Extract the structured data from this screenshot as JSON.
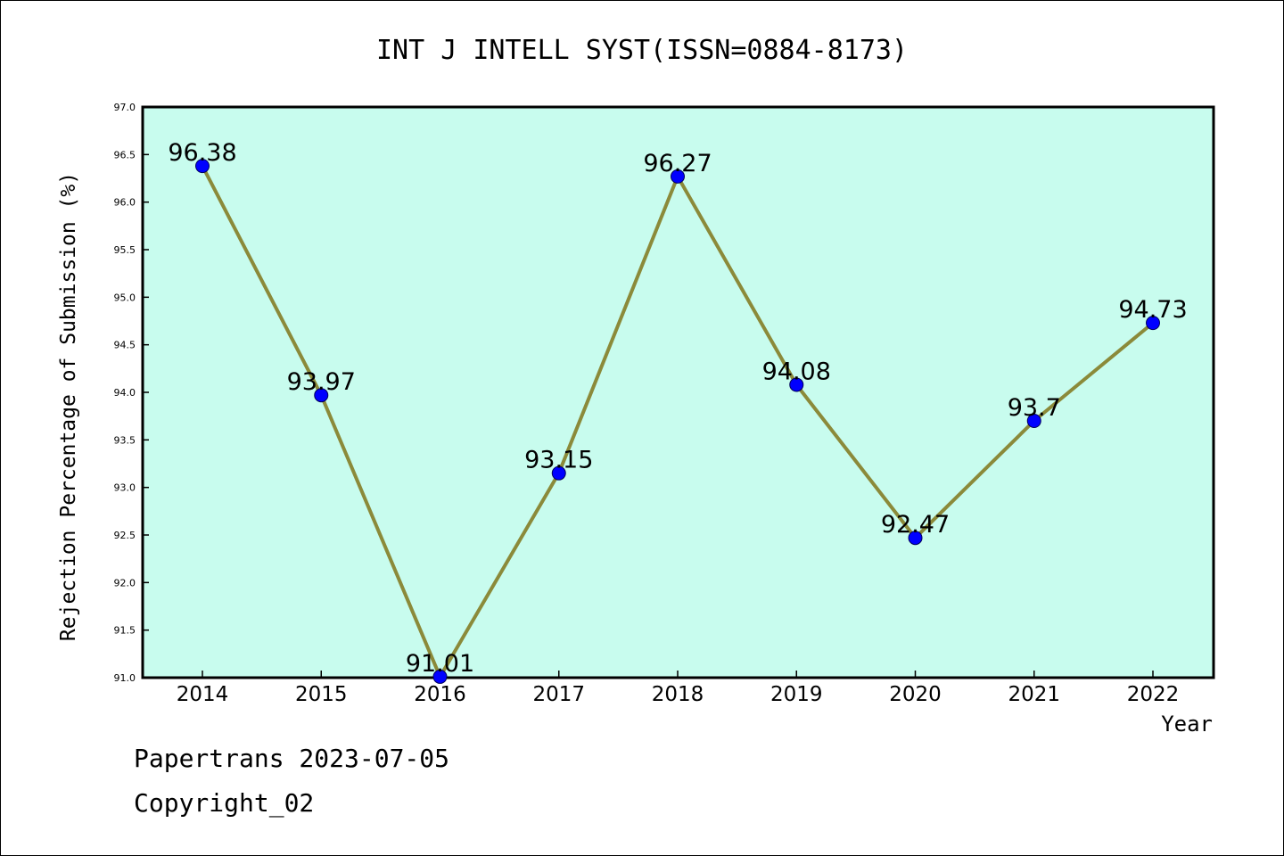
{
  "chart_data": {
    "type": "line",
    "title": "INT J INTELL SYST(ISSN=0884-8173)",
    "xlabel": "Year",
    "ylabel": "Rejection Percentage of Submission (%)",
    "categories": [
      "2014",
      "2015",
      "2016",
      "2017",
      "2018",
      "2019",
      "2020",
      "2021",
      "2022"
    ],
    "series": [
      {
        "values": [
          96.38,
          93.97,
          91.01,
          93.15,
          96.27,
          94.08,
          92.47,
          93.7,
          94.73
        ],
        "labels": [
          "96.38",
          "93.97",
          "91.01",
          "93.15",
          "96.27",
          "94.08",
          "92.47",
          "93.7",
          "94.73"
        ]
      }
    ],
    "ylim": [
      91.0,
      97.0
    ],
    "yticks": [
      "91.0",
      "91.5",
      "92.0",
      "92.5",
      "93.0",
      "93.5",
      "94.0",
      "94.5",
      "95.0",
      "95.5",
      "96.0",
      "96.5",
      "97.0"
    ],
    "grid": false,
    "colors": {
      "plot_background": "#c8fcee",
      "line": "#8b8a3a",
      "marker": "#0000ff"
    }
  },
  "footer": {
    "line1": "Papertrans 2023-07-05",
    "line2": "Copyright_02"
  }
}
